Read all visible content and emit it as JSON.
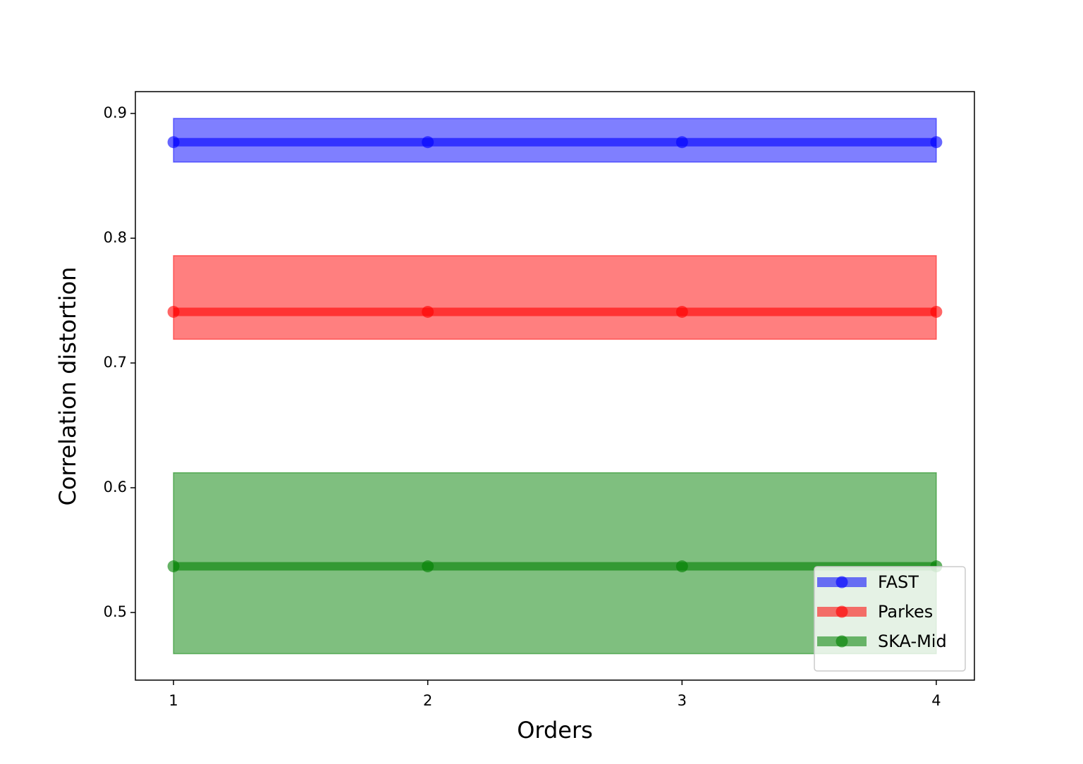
{
  "chart_data": {
    "type": "line",
    "x_label": "Orders",
    "y_label": "Correlation distortion",
    "x": [
      1,
      2,
      3,
      4
    ],
    "xlim": [
      0.85,
      4.15
    ],
    "xticks": [
      1,
      2,
      3,
      4
    ],
    "ylim": [
      0.4458,
      0.9175
    ],
    "yticks": [
      0.5,
      0.6,
      0.7,
      0.8,
      0.9
    ],
    "legend": "lower right",
    "series": [
      {
        "name": "FAST",
        "color": "#0000ff",
        "values": [
          0.877,
          0.877,
          0.877,
          0.877
        ],
        "lower": [
          0.861,
          0.861,
          0.861,
          0.861
        ],
        "upper": [
          0.896,
          0.896,
          0.896,
          0.896
        ]
      },
      {
        "name": "Parkes",
        "color": "#ff0000",
        "values": [
          0.741,
          0.741,
          0.741,
          0.741
        ],
        "lower": [
          0.719,
          0.719,
          0.719,
          0.719
        ],
        "upper": [
          0.786,
          0.786,
          0.786,
          0.786
        ]
      },
      {
        "name": "SKA-Mid",
        "color": "#008000",
        "values": [
          0.537,
          0.537,
          0.537,
          0.537
        ],
        "lower": [
          0.467,
          0.467,
          0.467,
          0.467
        ],
        "upper": [
          0.612,
          0.612,
          0.612,
          0.612
        ]
      }
    ]
  }
}
